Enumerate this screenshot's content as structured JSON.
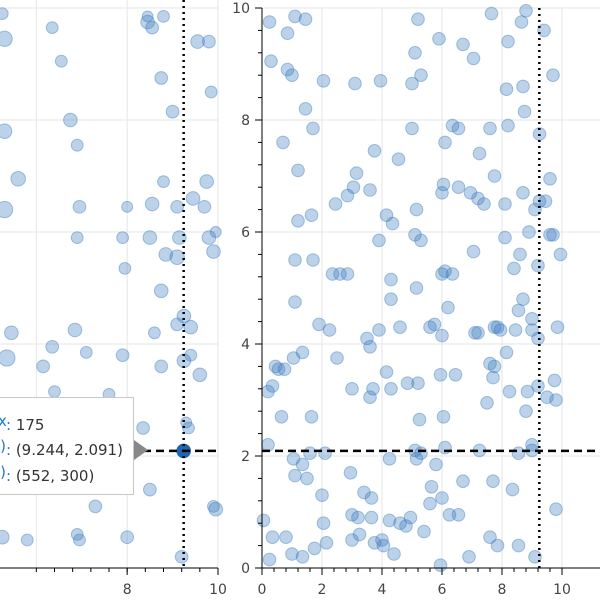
{
  "chart_data": [
    {
      "type": "scatter",
      "name": "left-plot",
      "x_range": [
        5.2,
        10
      ],
      "y_range": [
        0,
        10
      ],
      "x_ticks": [
        8,
        10
      ],
      "marker_color": "#3f7fbf",
      "marker_alpha": 0.35,
      "crosshair": {
        "x": 9.244,
        "y": 2.091
      },
      "highlighted_point": {
        "x": 9.244,
        "y": 2.091,
        "color": "#1f66b0"
      },
      "points": [
        {
          "x": 5.25,
          "y": 9.9,
          "r": 0.13
        },
        {
          "x": 5.3,
          "y": 9.45,
          "r": 0.17
        },
        {
          "x": 5.3,
          "y": 7.8,
          "r": 0.16
        },
        {
          "x": 5.6,
          "y": 6.95,
          "r": 0.16
        },
        {
          "x": 5.3,
          "y": 6.4,
          "r": 0.18
        },
        {
          "x": 5.45,
          "y": 4.2,
          "r": 0.15
        },
        {
          "x": 5.35,
          "y": 3.75,
          "r": 0.18
        },
        {
          "x": 5.4,
          "y": 2.65,
          "r": 0.14
        },
        {
          "x": 5.25,
          "y": 0.55,
          "r": 0.15
        },
        {
          "x": 5.8,
          "y": 0.5,
          "r": 0.13
        },
        {
          "x": 6.35,
          "y": 3.95,
          "r": 0.14
        },
        {
          "x": 6.15,
          "y": 3.6,
          "r": 0.14
        },
        {
          "x": 6.4,
          "y": 3.15,
          "r": 0.13
        },
        {
          "x": 6.35,
          "y": 9.65,
          "r": 0.13
        },
        {
          "x": 6.55,
          "y": 9.05,
          "r": 0.13
        },
        {
          "x": 6.75,
          "y": 8.0,
          "r": 0.15
        },
        {
          "x": 6.9,
          "y": 7.55,
          "r": 0.13
        },
        {
          "x": 6.95,
          "y": 6.45,
          "r": 0.14
        },
        {
          "x": 6.9,
          "y": 5.9,
          "r": 0.13
        },
        {
          "x": 6.85,
          "y": 4.25,
          "r": 0.15
        },
        {
          "x": 7.1,
          "y": 3.85,
          "r": 0.13
        },
        {
          "x": 6.9,
          "y": 0.6,
          "r": 0.13
        },
        {
          "x": 6.95,
          "y": 0.5,
          "r": 0.13
        },
        {
          "x": 7.3,
          "y": 1.1,
          "r": 0.14
        },
        {
          "x": 7.6,
          "y": 3.1,
          "r": 0.13
        },
        {
          "x": 7.75,
          "y": 1.95,
          "r": 0.12
        },
        {
          "x": 7.9,
          "y": 3.8,
          "r": 0.14
        },
        {
          "x": 7.95,
          "y": 5.35,
          "r": 0.13
        },
        {
          "x": 7.9,
          "y": 5.9,
          "r": 0.13
        },
        {
          "x": 8.0,
          "y": 6.45,
          "r": 0.12
        },
        {
          "x": 8.0,
          "y": 0.55,
          "r": 0.14
        },
        {
          "x": 8.35,
          "y": 2.5,
          "r": 0.14
        },
        {
          "x": 8.5,
          "y": 1.4,
          "r": 0.14
        },
        {
          "x": 8.5,
          "y": 5.9,
          "r": 0.15
        },
        {
          "x": 8.55,
          "y": 6.5,
          "r": 0.15
        },
        {
          "x": 8.6,
          "y": 4.2,
          "r": 0.13
        },
        {
          "x": 8.75,
          "y": 3.6,
          "r": 0.14
        },
        {
          "x": 8.75,
          "y": 4.95,
          "r": 0.15
        },
        {
          "x": 8.8,
          "y": 6.9,
          "r": 0.13
        },
        {
          "x": 8.75,
          "y": 8.75,
          "r": 0.14
        },
        {
          "x": 8.8,
          "y": 9.85,
          "r": 0.13
        },
        {
          "x": 9.0,
          "y": 8.15,
          "r": 0.14
        },
        {
          "x": 9.1,
          "y": 4.35,
          "r": 0.14
        },
        {
          "x": 9.1,
          "y": 5.55,
          "r": 0.16
        },
        {
          "x": 8.85,
          "y": 5.6,
          "r": 0.15
        },
        {
          "x": 9.15,
          "y": 5.9,
          "r": 0.15
        },
        {
          "x": 9.1,
          "y": 6.45,
          "r": 0.14
        },
        {
          "x": 9.25,
          "y": 4.5,
          "r": 0.15
        },
        {
          "x": 9.25,
          "y": 3.7,
          "r": 0.15
        },
        {
          "x": 9.35,
          "y": 2.5,
          "r": 0.13
        },
        {
          "x": 9.4,
          "y": 4.3,
          "r": 0.15
        },
        {
          "x": 9.45,
          "y": 6.6,
          "r": 0.15
        },
        {
          "x": 9.7,
          "y": 6.45,
          "r": 0.14
        },
        {
          "x": 9.75,
          "y": 6.9,
          "r": 0.15
        },
        {
          "x": 9.8,
          "y": 5.9,
          "r": 0.15
        },
        {
          "x": 9.9,
          "y": 5.65,
          "r": 0.15
        },
        {
          "x": 9.95,
          "y": 6.0,
          "r": 0.12
        },
        {
          "x": 9.55,
          "y": 9.4,
          "r": 0.15
        },
        {
          "x": 9.8,
          "y": 9.4,
          "r": 0.14
        },
        {
          "x": 9.85,
          "y": 8.5,
          "r": 0.13
        },
        {
          "x": 9.4,
          "y": 3.8,
          "r": 0.13
        },
        {
          "x": 9.6,
          "y": 3.45,
          "r": 0.15
        },
        {
          "x": 9.9,
          "y": 1.1,
          "r": 0.13
        },
        {
          "x": 9.95,
          "y": 1.05,
          "r": 0.15
        },
        {
          "x": 9.2,
          "y": 0.2,
          "r": 0.14
        },
        {
          "x": 9.3,
          "y": 2.6,
          "r": 0.12
        },
        {
          "x": 8.45,
          "y": 9.75,
          "r": 0.15
        },
        {
          "x": 8.45,
          "y": 9.85,
          "r": 0.12
        },
        {
          "x": 8.55,
          "y": 9.65,
          "r": 0.14
        }
      ]
    },
    {
      "type": "scatter",
      "name": "right-plot",
      "x_range": [
        0,
        10
      ],
      "y_range": [
        0,
        10
      ],
      "x_ticks": [
        0,
        2,
        4,
        6,
        8,
        10
      ],
      "y_ticks": [
        0,
        2,
        4,
        6,
        8,
        10
      ],
      "marker_color": "#3f7fbf",
      "marker_alpha": 0.35,
      "crosshair": {
        "x": 9.244,
        "y": 2.091
      },
      "points": [
        [
          0.25,
          9.75
        ],
        [
          0.3,
          9.05
        ],
        [
          0.85,
          9.55
        ],
        [
          1.1,
          9.85
        ],
        [
          1.45,
          9.8
        ],
        [
          0.85,
          8.9
        ],
        [
          1.0,
          8.8
        ],
        [
          1.45,
          8.2
        ],
        [
          2.05,
          8.7
        ],
        [
          3.1,
          8.65
        ],
        [
          3.95,
          8.7
        ],
        [
          5.0,
          8.65
        ],
        [
          5.3,
          8.8
        ],
        [
          5.1,
          9.2
        ],
        [
          5.2,
          9.8
        ],
        [
          5.9,
          9.45
        ],
        [
          6.7,
          9.35
        ],
        [
          7.05,
          9.1
        ],
        [
          7.65,
          9.9
        ],
        [
          8.2,
          9.4
        ],
        [
          8.65,
          9.75
        ],
        [
          8.8,
          9.95
        ],
        [
          9.4,
          9.6
        ],
        [
          9.7,
          8.8
        ],
        [
          0.7,
          7.6
        ],
        [
          1.2,
          7.1
        ],
        [
          1.7,
          7.85
        ],
        [
          3.75,
          7.45
        ],
        [
          4.55,
          7.3
        ],
        [
          5.0,
          7.85
        ],
        [
          6.1,
          7.6
        ],
        [
          6.35,
          7.9
        ],
        [
          6.55,
          7.85
        ],
        [
          7.25,
          7.4
        ],
        [
          7.6,
          7.85
        ],
        [
          8.2,
          7.9
        ],
        [
          8.7,
          8.6
        ],
        [
          8.15,
          8.55
        ],
        [
          8.75,
          8.15
        ],
        [
          9.25,
          7.75
        ],
        [
          1.2,
          6.2
        ],
        [
          1.65,
          6.3
        ],
        [
          2.45,
          6.5
        ],
        [
          2.85,
          6.65
        ],
        [
          3.05,
          6.8
        ],
        [
          3.15,
          7.05
        ],
        [
          3.6,
          6.75
        ],
        [
          4.15,
          6.3
        ],
        [
          4.35,
          6.15
        ],
        [
          5.15,
          6.4
        ],
        [
          5.1,
          5.95
        ],
        [
          6.05,
          6.85
        ],
        [
          6.0,
          6.7
        ],
        [
          6.55,
          6.8
        ],
        [
          6.95,
          6.7
        ],
        [
          7.2,
          6.6
        ],
        [
          7.4,
          6.5
        ],
        [
          7.75,
          7.0
        ],
        [
          8.1,
          6.5
        ],
        [
          8.7,
          6.7
        ],
        [
          9.1,
          6.4
        ],
        [
          9.25,
          6.55
        ],
        [
          9.45,
          6.55
        ],
        [
          9.6,
          6.95
        ],
        [
          9.6,
          5.95
        ],
        [
          9.7,
          5.95
        ],
        [
          9.95,
          5.6
        ],
        [
          1.1,
          5.5
        ],
        [
          1.7,
          5.5
        ],
        [
          2.35,
          5.25
        ],
        [
          2.6,
          5.25
        ],
        [
          2.85,
          5.25
        ],
        [
          3.9,
          5.85
        ],
        [
          5.3,
          5.85
        ],
        [
          6.0,
          5.25
        ],
        [
          6.1,
          5.3
        ],
        [
          6.35,
          5.25
        ],
        [
          7.05,
          5.65
        ],
        [
          8.1,
          5.9
        ],
        [
          8.4,
          5.35
        ],
        [
          8.6,
          5.6
        ],
        [
          8.9,
          6.0
        ],
        [
          9.2,
          5.4
        ],
        [
          9.0,
          4.25
        ],
        [
          1.1,
          4.75
        ],
        [
          1.9,
          4.35
        ],
        [
          2.25,
          4.25
        ],
        [
          3.5,
          4.1
        ],
        [
          3.6,
          3.95
        ],
        [
          3.9,
          4.25
        ],
        [
          4.3,
          4.8
        ],
        [
          4.3,
          5.15
        ],
        [
          4.6,
          4.3
        ],
        [
          5.15,
          5.0
        ],
        [
          5.6,
          4.3
        ],
        [
          5.75,
          4.35
        ],
        [
          6.0,
          4.15
        ],
        [
          6.2,
          4.65
        ],
        [
          7.2,
          4.2
        ],
        [
          7.75,
          4.3
        ],
        [
          7.95,
          4.25
        ],
        [
          8.45,
          4.25
        ],
        [
          8.7,
          4.8
        ],
        [
          9.0,
          4.45
        ],
        [
          9.2,
          4.1
        ],
        [
          9.85,
          4.3
        ],
        [
          0.45,
          3.6
        ],
        [
          0.55,
          3.55
        ],
        [
          0.75,
          3.55
        ],
        [
          0.35,
          3.25
        ],
        [
          0.2,
          3.15
        ],
        [
          1.05,
          3.75
        ],
        [
          1.35,
          3.85
        ],
        [
          2.5,
          3.75
        ],
        [
          3.0,
          3.2
        ],
        [
          3.6,
          3.05
        ],
        [
          3.7,
          3.2
        ],
        [
          4.15,
          3.5
        ],
        [
          4.3,
          3.2
        ],
        [
          4.85,
          3.3
        ],
        [
          5.2,
          3.3
        ],
        [
          5.95,
          3.45
        ],
        [
          6.45,
          3.45
        ],
        [
          7.6,
          3.65
        ],
        [
          7.7,
          3.4
        ],
        [
          7.75,
          3.6
        ],
        [
          8.25,
          3.15
        ],
        [
          8.85,
          3.15
        ],
        [
          9.2,
          3.25
        ],
        [
          9.75,
          3.35
        ],
        [
          9.5,
          3.05
        ],
        [
          0.65,
          2.7
        ],
        [
          1.65,
          2.7
        ],
        [
          5.25,
          2.65
        ],
        [
          6.05,
          2.7
        ],
        [
          7.5,
          2.95
        ],
        [
          8.8,
          2.8
        ],
        [
          9.8,
          3.0
        ],
        [
          0.2,
          2.2
        ],
        [
          1.05,
          1.95
        ],
        [
          1.35,
          1.85
        ],
        [
          1.6,
          2.05
        ],
        [
          2.1,
          2.05
        ],
        [
          5.1,
          2.1
        ],
        [
          5.3,
          2.05
        ],
        [
          5.15,
          1.95
        ],
        [
          5.8,
          1.85
        ],
        [
          6.1,
          2.15
        ],
        [
          7.25,
          2.1
        ],
        [
          8.55,
          2.05
        ],
        [
          9.0,
          2.2
        ],
        [
          9.0,
          2.1
        ],
        [
          1.1,
          1.65
        ],
        [
          1.5,
          1.6
        ],
        [
          2.0,
          1.3
        ],
        [
          2.95,
          1.7
        ],
        [
          4.25,
          1.95
        ],
        [
          5.65,
          1.45
        ],
        [
          6.0,
          1.25
        ],
        [
          6.7,
          1.55
        ],
        [
          7.7,
          1.55
        ],
        [
          8.35,
          1.4
        ],
        [
          3.4,
          1.35
        ],
        [
          3.65,
          1.25
        ],
        [
          4.25,
          0.85
        ],
        [
          4.6,
          0.8
        ],
        [
          4.95,
          0.9
        ],
        [
          5.6,
          1.15
        ],
        [
          6.25,
          0.95
        ],
        [
          6.55,
          0.95
        ],
        [
          0.35,
          0.55
        ],
        [
          0.8,
          0.55
        ],
        [
          1.0,
          0.25
        ],
        [
          1.35,
          0.2
        ],
        [
          1.75,
          0.35
        ],
        [
          2.15,
          0.45
        ],
        [
          2.05,
          0.8
        ],
        [
          3.0,
          0.95
        ],
        [
          3.2,
          0.9
        ],
        [
          3.65,
          0.9
        ],
        [
          3.0,
          0.5
        ],
        [
          3.75,
          0.45
        ],
        [
          4.0,
          0.5
        ],
        [
          4.05,
          0.4
        ],
        [
          4.4,
          0.25
        ],
        [
          4.8,
          0.75
        ],
        [
          5.4,
          0.65
        ],
        [
          5.95,
          0.05
        ],
        [
          6.9,
          0.2
        ],
        [
          7.6,
          0.55
        ],
        [
          7.85,
          0.4
        ],
        [
          8.55,
          0.4
        ],
        [
          9.1,
          0.2
        ],
        [
          9.8,
          1.05
        ],
        [
          0.05,
          0.85
        ],
        [
          0.25,
          0.15
        ],
        [
          3.25,
          0.6
        ],
        [
          7.1,
          4.2
        ],
        [
          7.85,
          4.3
        ],
        [
          8.15,
          3.85
        ],
        [
          8.55,
          4.6
        ]
      ]
    }
  ],
  "tooltip": {
    "rows": [
      {
        "key": "x",
        "sep": ": ",
        "value": "175"
      },
      {
        "key": "(x,y)",
        "sep": ": ",
        "value": "(9.244, 2.091)"
      },
      {
        "key": "(sx,sy)",
        "sep": ": ",
        "value": "(552, 300)"
      }
    ]
  }
}
